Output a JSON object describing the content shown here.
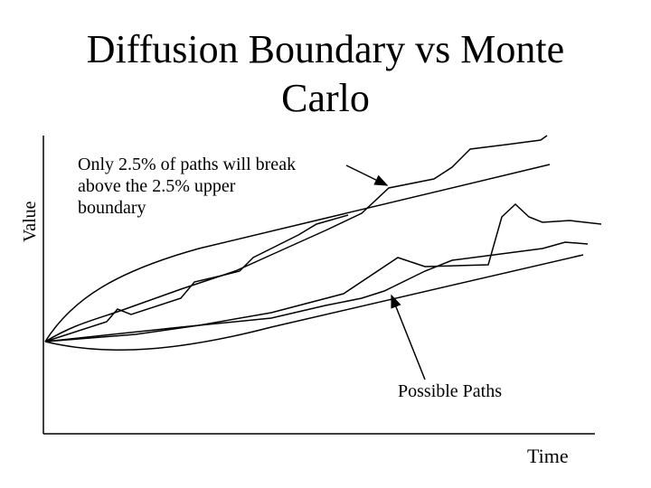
{
  "title": "Diffusion Boundary vs Monte Carlo",
  "axes": {
    "y_label": "Value",
    "x_label": "Time"
  },
  "annotations": {
    "boundary_note": {
      "lines": [
        "Only 2.5% of paths will break",
        "above the 2.5% upper",
        "boundary"
      ]
    },
    "paths_note": {
      "text": "Possible Paths"
    }
  }
}
